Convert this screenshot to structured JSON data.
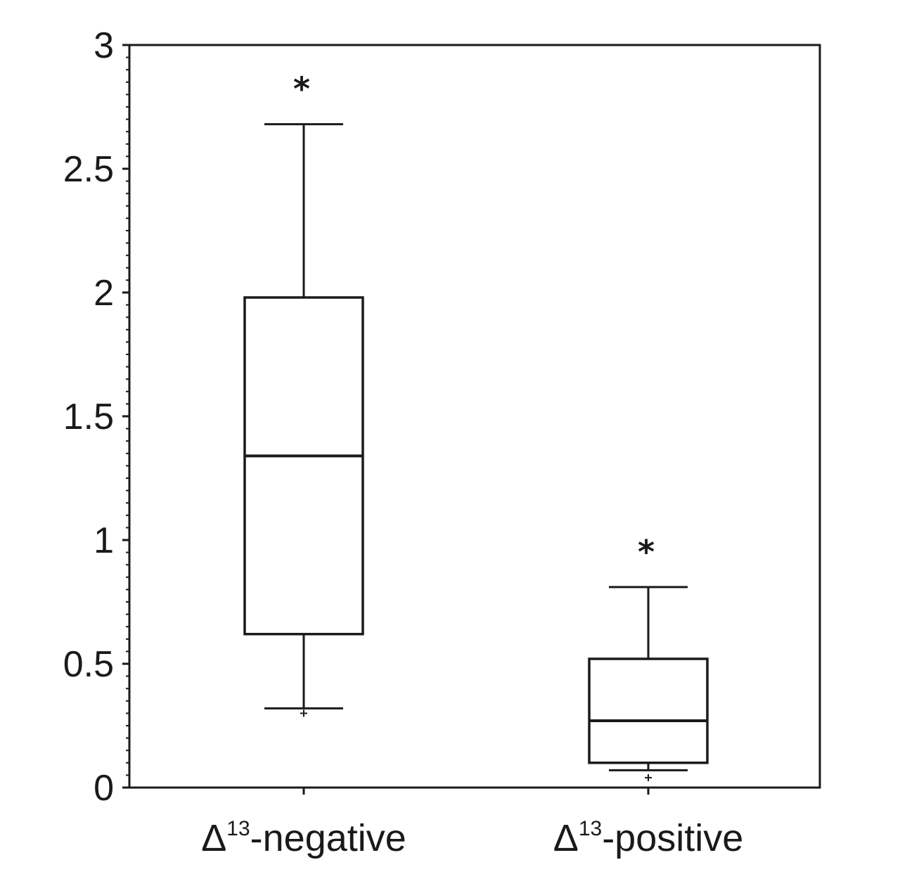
{
  "chart_data": {
    "type": "box",
    "ylim": [
      0,
      3
    ],
    "yticks": [
      "0",
      "0.5",
      "1",
      "1.5",
      "2",
      "2.5",
      "3"
    ],
    "xlabel": "",
    "ylabel": "",
    "grid": false,
    "categories": [
      {
        "delta": "Δ",
        "sup": "13",
        "suffix": "-negative"
      },
      {
        "delta": "Δ",
        "sup": "13",
        "suffix": "-positive"
      }
    ],
    "boxes": [
      {
        "whisker_low": 0.32,
        "q1": 0.62,
        "median": 1.34,
        "q3": 1.98,
        "whisker_high": 2.68,
        "outlier_low": 0.3,
        "marker": "*"
      },
      {
        "whisker_low": 0.07,
        "q1": 0.1,
        "median": 0.27,
        "q3": 0.52,
        "whisker_high": 0.81,
        "outlier_low": 0.04,
        "marker": "*"
      }
    ],
    "colors": {
      "stroke": "#1a1a1a",
      "background": "#ffffff"
    }
  }
}
